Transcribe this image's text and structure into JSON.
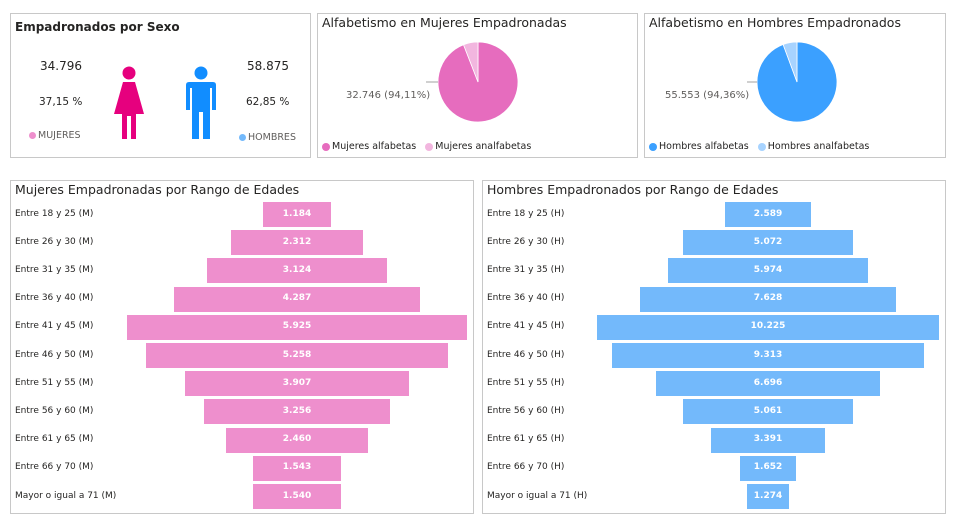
{
  "sexo": {
    "title": "Empadronados por Sexo",
    "mujeres": {
      "count": "34.796",
      "pct": "37,15 %",
      "label": "MUJERES",
      "color": "#e6007e"
    },
    "hombres": {
      "count": "58.875",
      "pct": "62,85 %",
      "label": "HOMBRES",
      "color": "#118dff"
    }
  },
  "alf_mujeres": {
    "title": "Alfabetismo en Mujeres Empadronadas",
    "label": "32.746 (94,11%)",
    "legend": [
      "Mujeres alfabetas",
      "Mujeres analfabetas"
    ],
    "colors": [
      "#e66cbe",
      "#f2b6df"
    ]
  },
  "alf_hombres": {
    "title": "Alfabetismo en Hombres Empadronados",
    "label": "55.553 (94,36%)",
    "legend": [
      "Hombres alfabetas",
      "Hombres analfabetas"
    ],
    "colors": [
      "#3ba0ff",
      "#a7d3ff"
    ]
  },
  "chart_data": [
    {
      "type": "pie",
      "title": "Alfabetismo en Mujeres Empadronadas",
      "categories": [
        "Mujeres alfabetas",
        "Mujeres analfabetas"
      ],
      "values": [
        32746,
        2050
      ],
      "percent": [
        94.11,
        5.89
      ]
    },
    {
      "type": "pie",
      "title": "Alfabetismo en Hombres Empadronados",
      "categories": [
        "Hombres alfabetas",
        "Hombres analfabetas"
      ],
      "values": [
        55553,
        3322
      ],
      "percent": [
        94.36,
        5.64
      ]
    },
    {
      "type": "bar",
      "title": "Mujeres Empadronadas por Rango de Edades",
      "color": "#ee8fcd",
      "categories": [
        "Entre 18 y 25 (M)",
        "Entre 26 y 30 (M)",
        "Entre 31 y 35 (M)",
        "Entre 36 y 40 (M)",
        "Entre 41 y 45 (M)",
        "Entre 46 y 50 (M)",
        "Entre 51 y 55 (M)",
        "Entre 56 y 60 (M)",
        "Entre 61 y 65 (M)",
        "Entre 66 y 70 (M)",
        "Mayor o igual a 71 (M)"
      ],
      "values": [
        1184,
        2312,
        3124,
        4287,
        5925,
        5258,
        3907,
        3256,
        2460,
        1543,
        1540
      ],
      "labels": [
        "1.184",
        "2.312",
        "3.124",
        "4.287",
        "5.925",
        "5.258",
        "3.907",
        "3.256",
        "2.460",
        "1.543",
        "1.540"
      ]
    },
    {
      "type": "bar",
      "title": "Hombres Empadronados por Rango de Edades",
      "color": "#73b9fb",
      "categories": [
        "Entre 18 y 25 (H)",
        "Entre 26 y 30 (H)",
        "Entre 31 y 35 (H)",
        "Entre 36 y 40 (H)",
        "Entre 41 y 45 (H)",
        "Entre 46 y 50 (H)",
        "Entre 51 y 55 (H)",
        "Entre 56 y 60 (H)",
        "Entre 61 y 65 (H)",
        "Entre 66 y 70 (H)",
        "Mayor o igual a 71 (H)"
      ],
      "values": [
        2589,
        5072,
        5974,
        7628,
        10225,
        9313,
        6696,
        5061,
        3391,
        1652,
        1274
      ],
      "labels": [
        "2.589",
        "5.072",
        "5.974",
        "7.628",
        "10.225",
        "9.313",
        "6.696",
        "5.061",
        "3.391",
        "1.652",
        "1.274"
      ]
    }
  ]
}
